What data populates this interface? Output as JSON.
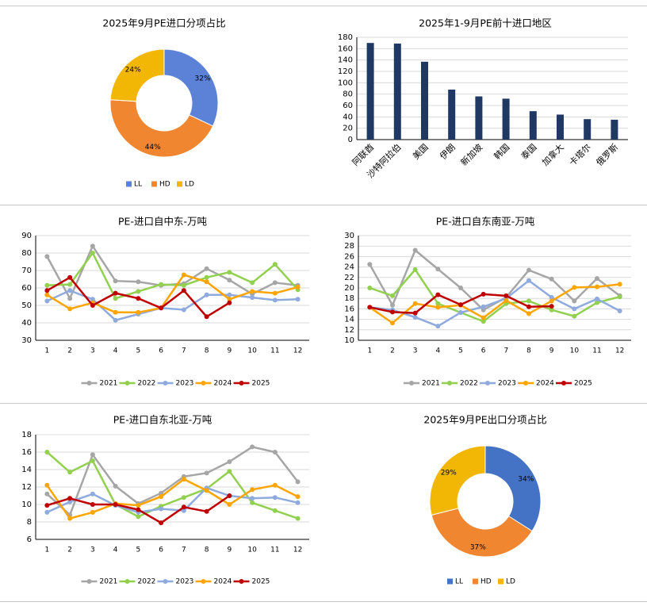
{
  "chart_data": [
    {
      "type": "pie",
      "title": "2025年9月PE进口分项占比",
      "categories": [
        "LL",
        "HD",
        "LD"
      ],
      "values": [
        32,
        44,
        24
      ],
      "value_labels": [
        "32%",
        "44%",
        "24%"
      ],
      "colors": [
        "#5b82d6",
        "#f08630",
        "#f2b705"
      ],
      "legend": "bottom"
    },
    {
      "type": "bar",
      "title": "2025年1-9月PE前十进口地区",
      "categories": [
        "阿联酋",
        "沙特阿拉伯",
        "美国",
        "伊朗",
        "新加坡",
        "韩国",
        "泰国",
        "加拿大",
        "卡塔尔",
        "俄罗斯"
      ],
      "values": [
        170,
        169,
        137,
        88,
        76,
        72,
        50,
        44,
        36,
        35
      ],
      "color": "#1f3864",
      "ylim": [
        0,
        180
      ],
      "yticks": [
        0,
        20,
        40,
        60,
        80,
        100,
        120,
        140,
        160,
        180
      ],
      "grid": true
    },
    {
      "type": "line",
      "title": "PE-进口自中东-万吨",
      "categories": [
        "1",
        "2",
        "3",
        "4",
        "5",
        "6",
        "7",
        "8",
        "9",
        "10",
        "11",
        "12"
      ],
      "ylim": [
        30,
        90
      ],
      "yticks": [
        30,
        40,
        50,
        60,
        70,
        80,
        90
      ],
      "grid": true,
      "legend": "bottom",
      "series": [
        {
          "name": "2021",
          "color": "#a6a6a6",
          "values": [
            78,
            54,
            84,
            64,
            63.5,
            61.5,
            62.5,
            71,
            64.5,
            56.5,
            63,
            61.5
          ]
        },
        {
          "name": "2022",
          "color": "#92d050",
          "values": [
            61.5,
            62,
            80,
            54,
            58,
            62,
            61.5,
            66,
            69,
            63,
            73.5,
            59
          ]
        },
        {
          "name": "2023",
          "color": "#8faadc",
          "values": [
            52.5,
            58.5,
            53.5,
            41.5,
            45,
            48.5,
            47.5,
            56,
            56,
            54.5,
            53,
            53.5
          ]
        },
        {
          "name": "2024",
          "color": "#ffa500",
          "values": [
            56,
            48,
            51.5,
            46,
            46,
            48.5,
            67.5,
            63.5,
            53.5,
            58,
            57,
            60.5
          ]
        },
        {
          "name": "2025",
          "color": "#c00000",
          "values": [
            58.5,
            66,
            50,
            57,
            54,
            48.5,
            58.5,
            43.5,
            51.5,
            null,
            null,
            null
          ]
        }
      ]
    },
    {
      "type": "line",
      "title": "PE-进口自东南亚-万吨",
      "categories": [
        "1",
        "2",
        "3",
        "4",
        "5",
        "6",
        "7",
        "8",
        "9",
        "10",
        "11",
        "12"
      ],
      "ylim": [
        10,
        30
      ],
      "yticks": [
        10,
        12,
        14,
        16,
        18,
        20,
        22,
        24,
        26,
        28,
        30
      ],
      "grid": true,
      "legend": "bottom",
      "series": [
        {
          "name": "2021",
          "color": "#a6a6a6",
          "values": [
            24.5,
            16.7,
            27.2,
            23.6,
            20,
            15.8,
            18.2,
            23.4,
            21.7,
            17.5,
            21.8,
            18.5
          ]
        },
        {
          "name": "2022",
          "color": "#92d050",
          "values": [
            20,
            18.5,
            23.5,
            17,
            15.3,
            13.6,
            17,
            17.5,
            15.8,
            14.6,
            17.2,
            18.3
          ]
        },
        {
          "name": "2023",
          "color": "#8faadc",
          "values": [
            16.3,
            15.8,
            14.4,
            12.7,
            15.3,
            16.4,
            18,
            21.4,
            18.2,
            16,
            17.9,
            15.6
          ]
        },
        {
          "name": "2024",
          "color": "#ffa500",
          "values": [
            16.3,
            13.3,
            17,
            16.3,
            16.7,
            14.3,
            17.6,
            15.1,
            17.5,
            20.1,
            20.2,
            20.7
          ]
        },
        {
          "name": "2025",
          "color": "#c00000",
          "values": [
            16.3,
            15.4,
            15.2,
            18.7,
            16.8,
            18.8,
            18.5,
            16.4,
            16.5,
            null,
            null,
            null
          ]
        }
      ]
    },
    {
      "type": "line",
      "title": "PE-进口自东北亚-万吨",
      "categories": [
        "1",
        "2",
        "3",
        "4",
        "5",
        "6",
        "7",
        "8",
        "9",
        "10",
        "11",
        "12"
      ],
      "ylim": [
        6,
        18
      ],
      "yticks": [
        6,
        8,
        10,
        12,
        14,
        16,
        18
      ],
      "grid": true,
      "legend": "bottom",
      "series": [
        {
          "name": "2021",
          "color": "#a6a6a6",
          "values": [
            11.2,
            8.8,
            15.7,
            12.1,
            10.1,
            11.3,
            13.2,
            13.6,
            14.9,
            16.6,
            16,
            12.6
          ]
        },
        {
          "name": "2022",
          "color": "#92d050",
          "values": [
            16,
            13.7,
            15,
            10,
            8.6,
            9.8,
            10.8,
            11.8,
            13.8,
            10.2,
            9.3,
            8.4
          ]
        },
        {
          "name": "2023",
          "color": "#8faadc",
          "values": [
            9.1,
            10.3,
            11.2,
            9.9,
            9.1,
            9.5,
            9.3,
            11.9,
            11,
            10.7,
            10.8,
            10.2
          ]
        },
        {
          "name": "2024",
          "color": "#ffa500",
          "values": [
            12.2,
            8.4,
            9.1,
            10.1,
            9.9,
            10.9,
            12.9,
            11.6,
            10,
            11.7,
            12.2,
            10.9
          ]
        },
        {
          "name": "2025",
          "color": "#c00000",
          "values": [
            9.9,
            10.7,
            10,
            10,
            9.4,
            7.9,
            9.7,
            9.2,
            11,
            null,
            null,
            null
          ]
        }
      ]
    },
    {
      "type": "pie",
      "title": "2025年9月PE出口分项占比",
      "categories": [
        "LL",
        "HD",
        "LD"
      ],
      "values": [
        34,
        37,
        29
      ],
      "value_labels": [
        "34%",
        "37%",
        "29%"
      ],
      "colors": [
        "#4472c4",
        "#f08630",
        "#f2b705"
      ],
      "legend": "bottom"
    }
  ]
}
